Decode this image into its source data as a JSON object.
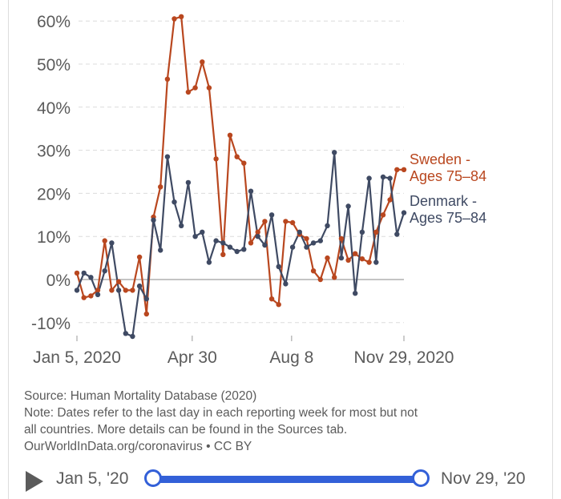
{
  "chart_data": {
    "type": "line",
    "title": "",
    "xlabel": "",
    "ylabel": "",
    "ylim": [
      -12,
      62
    ],
    "y_ticks": [
      {
        "value": -10,
        "label": "-10%"
      },
      {
        "value": 0,
        "label": "0%"
      },
      {
        "value": 10,
        "label": "10%"
      },
      {
        "value": 20,
        "label": "20%"
      },
      {
        "value": 30,
        "label": "30%"
      },
      {
        "value": 40,
        "label": "40%"
      },
      {
        "value": 50,
        "label": "50%"
      },
      {
        "value": 60,
        "label": "60%"
      }
    ],
    "x_range": [
      "2020-01-05",
      "2020-11-29"
    ],
    "x_ticks": [
      {
        "date": "2020-01-05",
        "label": "Jan 5, 2020"
      },
      {
        "date": "2020-04-30",
        "label": "Apr 30"
      },
      {
        "date": "2020-08-08",
        "label": "Aug 8"
      },
      {
        "date": "2020-11-29",
        "label": "Nov 29, 2020"
      }
    ],
    "grid": true,
    "legend": "right",
    "series": [
      {
        "name": "Sweden - Ages 75–84",
        "label_lines": [
          "Sweden -",
          "Ages 75–84"
        ],
        "color": "#b9471f",
        "x": [
          "2020-01-05",
          "2020-01-12",
          "2020-01-19",
          "2020-01-26",
          "2020-02-02",
          "2020-02-09",
          "2020-02-16",
          "2020-02-23",
          "2020-03-01",
          "2020-03-08",
          "2020-03-15",
          "2020-03-22",
          "2020-03-29",
          "2020-04-05",
          "2020-04-12",
          "2020-04-19",
          "2020-04-26",
          "2020-05-03",
          "2020-05-10",
          "2020-05-17",
          "2020-05-24",
          "2020-05-31",
          "2020-06-07",
          "2020-06-14",
          "2020-06-21",
          "2020-06-28",
          "2020-07-05",
          "2020-07-12",
          "2020-07-19",
          "2020-07-26",
          "2020-08-02",
          "2020-08-09",
          "2020-08-16",
          "2020-08-23",
          "2020-08-30",
          "2020-09-06",
          "2020-09-13",
          "2020-09-20",
          "2020-09-27",
          "2020-10-04",
          "2020-10-11",
          "2020-10-18",
          "2020-10-25",
          "2020-11-01",
          "2020-11-08",
          "2020-11-15",
          "2020-11-22",
          "2020-11-29"
        ],
        "values": [
          1.5,
          -4.2,
          -3.8,
          -2.5,
          9.0,
          -2.5,
          -0.5,
          -2.5,
          -2.5,
          5.2,
          -8.0,
          14.5,
          21.5,
          46.5,
          60.5,
          61.0,
          43.5,
          44.5,
          50.5,
          44.5,
          28.0,
          5.8,
          33.5,
          28.5,
          27.0,
          8.5,
          11.0,
          13.5,
          -4.5,
          -5.8,
          13.5,
          13.2,
          10.5,
          9.5,
          2.0,
          0.0,
          5.0,
          0.5,
          9.5,
          4.5,
          6.0,
          4.8,
          4.0,
          11.0,
          15.0,
          18.5,
          25.5,
          25.5
        ]
      },
      {
        "name": "Denmark - Ages 75–84",
        "label_lines": [
          "Denmark -",
          "Ages 75–84"
        ],
        "color": "#3f4a63",
        "x": [
          "2020-01-05",
          "2020-01-12",
          "2020-01-19",
          "2020-01-26",
          "2020-02-02",
          "2020-02-09",
          "2020-02-16",
          "2020-02-23",
          "2020-03-01",
          "2020-03-08",
          "2020-03-15",
          "2020-03-22",
          "2020-03-29",
          "2020-04-05",
          "2020-04-12",
          "2020-04-19",
          "2020-04-26",
          "2020-05-03",
          "2020-05-10",
          "2020-05-17",
          "2020-05-24",
          "2020-05-31",
          "2020-06-07",
          "2020-06-14",
          "2020-06-21",
          "2020-06-28",
          "2020-07-05",
          "2020-07-12",
          "2020-07-19",
          "2020-07-26",
          "2020-08-02",
          "2020-08-09",
          "2020-08-16",
          "2020-08-23",
          "2020-08-30",
          "2020-09-06",
          "2020-09-13",
          "2020-09-20",
          "2020-09-27",
          "2020-10-04",
          "2020-10-11",
          "2020-10-18",
          "2020-10-25",
          "2020-11-01",
          "2020-11-08",
          "2020-11-15",
          "2020-11-22",
          "2020-11-29"
        ],
        "values": [
          -2.5,
          1.5,
          0.5,
          -3.5,
          2.0,
          8.5,
          -2.5,
          -12.5,
          -13.2,
          -1.5,
          -4.5,
          13.8,
          6.8,
          28.5,
          18.0,
          12.5,
          22.5,
          10.0,
          11.0,
          4.0,
          9.0,
          8.5,
          7.5,
          6.5,
          7.0,
          20.5,
          10.0,
          8.0,
          15.0,
          3.0,
          -1.0,
          7.5,
          11.0,
          7.5,
          8.5,
          9.0,
          12.5,
          29.5,
          5.0,
          17.0,
          -3.2,
          11.0,
          23.5,
          4.0,
          23.8,
          23.5,
          10.5,
          15.5
        ]
      }
    ]
  },
  "notes": {
    "source": "Source: Human Mortality Database (2020)",
    "note_line1": "Note: Dates refer to the last day in each reporting week for most but not",
    "note_line2": "all countries. More details can be found in the Sources tab.",
    "credit": "OurWorldInData.org/coronavirus • CC BY"
  },
  "timeline": {
    "start_label": "Jan 5, '20",
    "end_label": "Nov 29, '20"
  }
}
